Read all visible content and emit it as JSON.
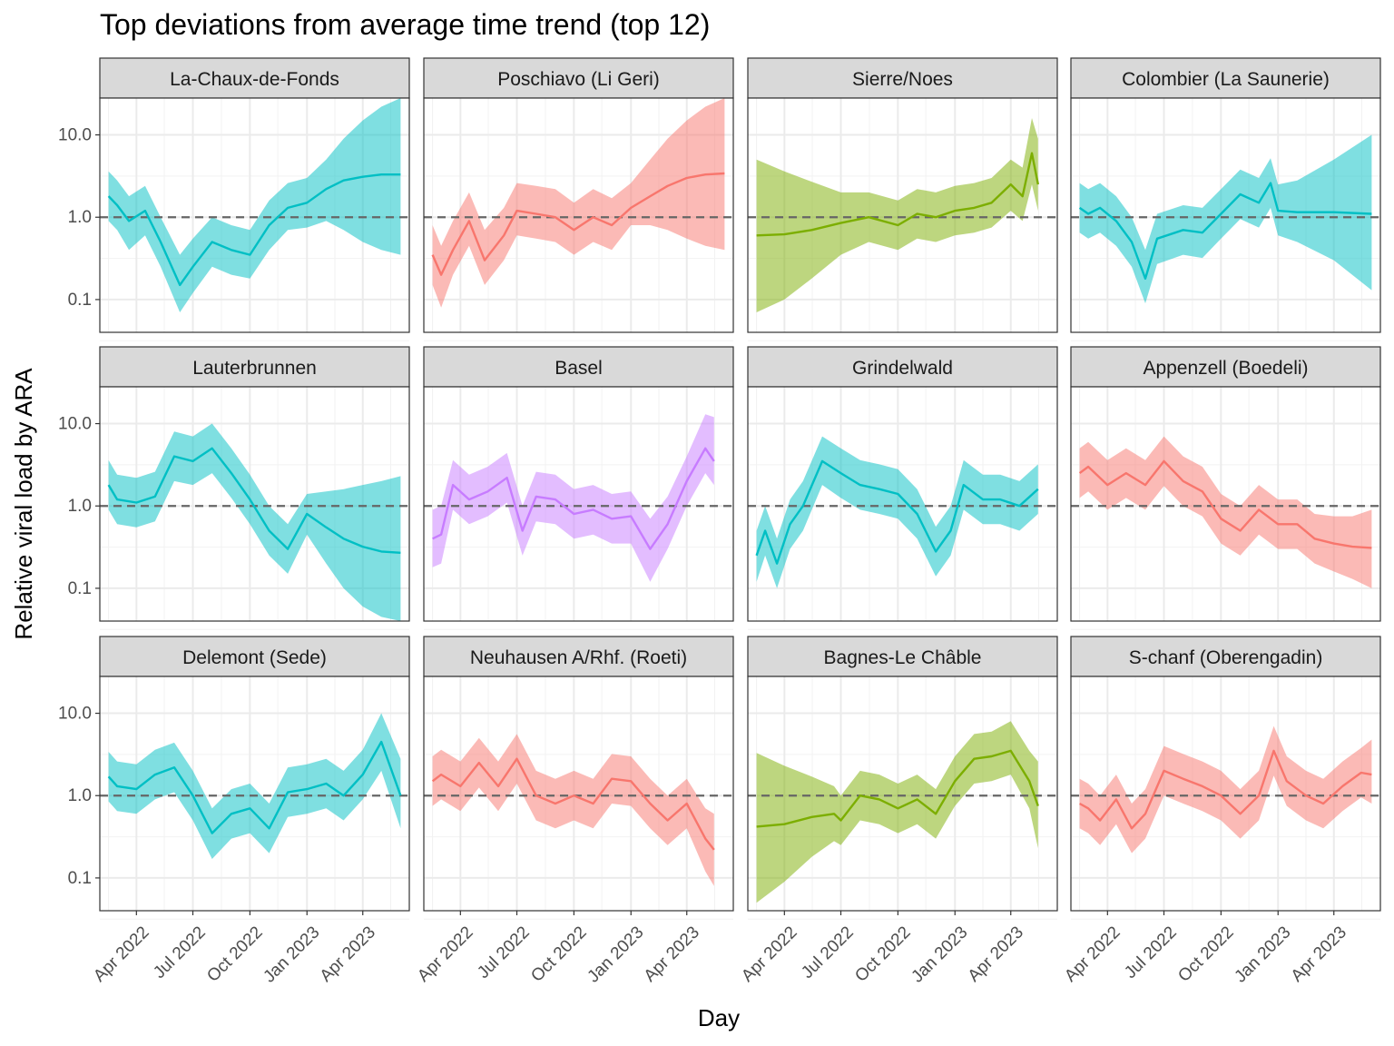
{
  "chart_data": {
    "type": "line",
    "title": "Top deviations from average time trend (top 12)",
    "xlabel": "Day",
    "ylabel": "Relative viral load by ARA",
    "y_scale": "log10",
    "ylim": [
      0.04,
      28
    ],
    "y_ticks": [
      0.1,
      1.0,
      10.0
    ],
    "y_tick_labels": [
      "0.1",
      "1.0",
      "10.0"
    ],
    "xlim": [
      "2022-02-01",
      "2023-06-15"
    ],
    "x_ticks": [
      "2022-04-01",
      "2022-07-01",
      "2022-10-01",
      "2023-01-01",
      "2023-04-01"
    ],
    "x_tick_labels": [
      "Apr 2022",
      "Jul 2022",
      "Oct 2022",
      "Jan 2023",
      "Apr 2023"
    ],
    "reference_line": 1.0,
    "grid": true,
    "layout": "facet grid 3 rows x 4 columns",
    "colors": {
      "teal": "#00BFC4",
      "red": "#F8766D",
      "green": "#7CAE00",
      "purple": "#C77CFF"
    },
    "facets": [
      {
        "name": "La-Chaux-de-Fonds",
        "color": "#00BFC4",
        "x": [
          "2022-02-15",
          "2022-03-01",
          "2022-03-20",
          "2022-04-15",
          "2022-05-10",
          "2022-06-10",
          "2022-07-01",
          "2022-08-01",
          "2022-09-01",
          "2022-10-01",
          "2022-11-01",
          "2022-12-01",
          "2023-01-01",
          "2023-02-01",
          "2023-03-01",
          "2023-04-01",
          "2023-05-01",
          "2023-06-01"
        ],
        "y": [
          1.8,
          1.4,
          0.9,
          1.2,
          0.5,
          0.15,
          0.25,
          0.5,
          0.4,
          0.35,
          0.8,
          1.3,
          1.5,
          2.2,
          2.8,
          3.1,
          3.3,
          3.3
        ],
        "lower": [
          0.9,
          0.7,
          0.4,
          0.6,
          0.25,
          0.07,
          0.12,
          0.25,
          0.2,
          0.18,
          0.4,
          0.7,
          0.75,
          0.9,
          0.7,
          0.5,
          0.4,
          0.35
        ],
        "upper": [
          3.6,
          2.8,
          1.8,
          2.4,
          1.0,
          0.35,
          0.55,
          1.0,
          0.8,
          0.7,
          1.6,
          2.6,
          3.0,
          5.0,
          9.0,
          15.0,
          22.0,
          28.0
        ]
      },
      {
        "name": "Poschiavo (Li Geri)",
        "color": "#F8766D",
        "x": [
          "2022-02-15",
          "2022-03-01",
          "2022-03-20",
          "2022-04-15",
          "2022-05-10",
          "2022-06-10",
          "2022-07-01",
          "2022-08-01",
          "2022-09-01",
          "2022-10-01",
          "2022-11-01",
          "2022-12-01",
          "2023-01-01",
          "2023-02-01",
          "2023-03-01",
          "2023-04-01",
          "2023-05-01",
          "2023-06-01"
        ],
        "y": [
          0.35,
          0.2,
          0.4,
          0.9,
          0.3,
          0.6,
          1.2,
          1.1,
          1.0,
          0.7,
          1.0,
          0.8,
          1.3,
          1.8,
          2.4,
          3.0,
          3.3,
          3.4
        ],
        "lower": [
          0.15,
          0.08,
          0.2,
          0.45,
          0.15,
          0.3,
          0.6,
          0.55,
          0.5,
          0.35,
          0.5,
          0.4,
          0.8,
          0.8,
          0.7,
          0.55,
          0.45,
          0.4
        ],
        "upper": [
          0.8,
          0.45,
          0.9,
          2.0,
          0.7,
          1.3,
          2.6,
          2.4,
          2.2,
          1.5,
          2.2,
          1.7,
          2.6,
          5.0,
          9.0,
          15.0,
          22.0,
          28.0
        ]
      },
      {
        "name": "Sierre/Noes",
        "color": "#7CAE00",
        "x": [
          "2022-02-15",
          "2022-04-01",
          "2022-05-15",
          "2022-07-01",
          "2022-08-15",
          "2022-10-01",
          "2022-11-01",
          "2022-12-01",
          "2023-01-01",
          "2023-02-01",
          "2023-03-01",
          "2023-04-01",
          "2023-04-20",
          "2023-05-05",
          "2023-05-15"
        ],
        "y": [
          0.6,
          0.62,
          0.7,
          0.85,
          1.0,
          0.8,
          1.1,
          1.0,
          1.2,
          1.3,
          1.5,
          2.5,
          1.8,
          6.0,
          2.5
        ],
        "lower": [
          0.07,
          0.1,
          0.18,
          0.35,
          0.5,
          0.4,
          0.55,
          0.5,
          0.6,
          0.65,
          0.75,
          1.2,
          0.9,
          2.5,
          1.2
        ],
        "upper": [
          5.0,
          3.6,
          2.7,
          2.0,
          2.0,
          1.6,
          2.2,
          2.0,
          2.4,
          2.6,
          3.0,
          5.0,
          4.0,
          16.0,
          9.0
        ]
      },
      {
        "name": "Colombier (La Saunerie)",
        "color": "#00BFC4",
        "x": [
          "2022-02-15",
          "2022-03-01",
          "2022-03-20",
          "2022-04-15",
          "2022-05-10",
          "2022-06-01",
          "2022-06-20",
          "2022-08-01",
          "2022-09-01",
          "2022-10-01",
          "2022-11-01",
          "2022-12-01",
          "2022-12-20",
          "2023-01-01",
          "2023-02-01",
          "2023-04-01",
          "2023-06-01"
        ],
        "y": [
          1.3,
          1.1,
          1.3,
          0.9,
          0.5,
          0.18,
          0.55,
          0.7,
          0.65,
          1.1,
          1.9,
          1.5,
          2.6,
          1.2,
          1.15,
          1.15,
          1.1
        ],
        "lower": [
          0.65,
          0.55,
          0.65,
          0.45,
          0.25,
          0.09,
          0.27,
          0.35,
          0.32,
          0.55,
          0.95,
          0.75,
          1.3,
          0.6,
          0.5,
          0.3,
          0.13
        ],
        "upper": [
          2.6,
          2.2,
          2.6,
          1.8,
          1.0,
          0.4,
          1.1,
          1.4,
          1.3,
          2.2,
          3.8,
          3.0,
          5.2,
          2.5,
          2.8,
          5.0,
          10.0
        ]
      },
      {
        "name": "Lauterbrunnen",
        "color": "#00BFC4",
        "x": [
          "2022-02-15",
          "2022-03-01",
          "2022-04-01",
          "2022-05-01",
          "2022-06-01",
          "2022-07-01",
          "2022-08-01",
          "2022-09-01",
          "2022-10-01",
          "2022-11-01",
          "2022-12-01",
          "2023-01-01",
          "2023-02-01",
          "2023-03-01",
          "2023-04-01",
          "2023-05-01",
          "2023-06-01"
        ],
        "y": [
          1.8,
          1.2,
          1.1,
          1.3,
          4.0,
          3.5,
          5.0,
          2.5,
          1.2,
          0.5,
          0.3,
          0.8,
          0.55,
          0.4,
          0.32,
          0.28,
          0.27
        ],
        "lower": [
          0.9,
          0.6,
          0.55,
          0.65,
          2.0,
          1.8,
          2.5,
          1.25,
          0.6,
          0.25,
          0.15,
          0.45,
          0.2,
          0.1,
          0.06,
          0.045,
          0.04
        ],
        "upper": [
          3.6,
          2.4,
          2.2,
          2.6,
          8.0,
          7.0,
          10.0,
          5.0,
          2.4,
          1.0,
          0.6,
          1.4,
          1.5,
          1.6,
          1.8,
          2.0,
          2.3
        ]
      },
      {
        "name": "Basel",
        "color": "#C77CFF",
        "x": [
          "2022-02-15",
          "2022-03-01",
          "2022-03-20",
          "2022-04-15",
          "2022-05-15",
          "2022-06-15",
          "2022-07-10",
          "2022-08-01",
          "2022-09-01",
          "2022-10-01",
          "2022-11-01",
          "2022-12-01",
          "2023-01-01",
          "2023-02-01",
          "2023-03-01",
          "2023-04-01",
          "2023-05-01",
          "2023-05-15"
        ],
        "y": [
          0.4,
          0.45,
          1.8,
          1.2,
          1.5,
          2.2,
          0.5,
          1.3,
          1.2,
          0.8,
          0.9,
          0.7,
          0.75,
          0.3,
          0.6,
          2.0,
          5.0,
          3.5
        ],
        "lower": [
          0.18,
          0.2,
          0.9,
          0.6,
          0.75,
          1.1,
          0.25,
          0.65,
          0.6,
          0.4,
          0.45,
          0.35,
          0.35,
          0.12,
          0.3,
          1.0,
          2.5,
          1.8
        ],
        "upper": [
          0.9,
          1.0,
          3.6,
          2.4,
          3.0,
          4.4,
          1.0,
          2.6,
          2.4,
          1.6,
          1.8,
          1.4,
          1.5,
          0.7,
          1.3,
          4.0,
          13.0,
          12.0
        ]
      },
      {
        "name": "Grindelwald",
        "color": "#00BFC4",
        "x": [
          "2022-02-15",
          "2022-03-01",
          "2022-03-20",
          "2022-04-10",
          "2022-05-01",
          "2022-06-01",
          "2022-07-01",
          "2022-08-01",
          "2022-09-01",
          "2022-10-01",
          "2022-11-01",
          "2022-12-01",
          "2022-12-25",
          "2023-01-15",
          "2023-02-15",
          "2023-03-15",
          "2023-04-15",
          "2023-05-15"
        ],
        "y": [
          0.25,
          0.5,
          0.2,
          0.6,
          1.0,
          3.5,
          2.5,
          1.8,
          1.6,
          1.4,
          0.8,
          0.28,
          0.5,
          1.8,
          1.2,
          1.2,
          1.0,
          1.6
        ],
        "lower": [
          0.12,
          0.25,
          0.1,
          0.3,
          0.5,
          1.8,
          1.25,
          0.9,
          0.8,
          0.7,
          0.4,
          0.14,
          0.25,
          0.9,
          0.6,
          0.6,
          0.5,
          0.8
        ],
        "upper": [
          0.5,
          1.0,
          0.4,
          1.2,
          2.0,
          7.0,
          5.0,
          3.6,
          3.2,
          2.8,
          1.6,
          0.56,
          1.0,
          3.6,
          2.4,
          2.4,
          2.0,
          3.2
        ]
      },
      {
        "name": "Appenzell (Boedeli)",
        "color": "#F8766D",
        "x": [
          "2022-02-15",
          "2022-03-01",
          "2022-04-01",
          "2022-05-01",
          "2022-06-01",
          "2022-07-01",
          "2022-08-01",
          "2022-09-01",
          "2022-10-01",
          "2022-11-01",
          "2022-12-01",
          "2023-01-01",
          "2023-02-01",
          "2023-03-01",
          "2023-04-01",
          "2023-05-01",
          "2023-06-01"
        ],
        "y": [
          2.5,
          3.0,
          1.8,
          2.5,
          1.8,
          3.5,
          2.0,
          1.5,
          0.7,
          0.5,
          0.9,
          0.6,
          0.6,
          0.4,
          0.35,
          0.32,
          0.31
        ],
        "lower": [
          1.25,
          1.5,
          0.9,
          1.25,
          0.9,
          1.75,
          1.0,
          0.75,
          0.35,
          0.25,
          0.45,
          0.3,
          0.3,
          0.2,
          0.16,
          0.13,
          0.1
        ],
        "upper": [
          5.0,
          6.0,
          3.6,
          5.0,
          3.6,
          7.0,
          4.0,
          3.0,
          1.4,
          1.0,
          1.8,
          1.2,
          1.2,
          0.8,
          0.75,
          0.75,
          0.9
        ]
      },
      {
        "name": "Delemont (Sede)",
        "color": "#00BFC4",
        "x": [
          "2022-02-15",
          "2022-03-01",
          "2022-04-01",
          "2022-05-01",
          "2022-06-01",
          "2022-07-01",
          "2022-08-01",
          "2022-09-01",
          "2022-10-01",
          "2022-11-01",
          "2022-12-01",
          "2023-01-01",
          "2023-02-01",
          "2023-03-01",
          "2023-04-01",
          "2023-05-01",
          "2023-06-01"
        ],
        "y": [
          1.7,
          1.3,
          1.2,
          1.8,
          2.2,
          1.0,
          0.35,
          0.6,
          0.7,
          0.4,
          1.1,
          1.2,
          1.4,
          1.0,
          1.8,
          4.5,
          1.0
        ],
        "lower": [
          0.85,
          0.65,
          0.6,
          0.9,
          1.1,
          0.5,
          0.17,
          0.3,
          0.35,
          0.2,
          0.55,
          0.6,
          0.7,
          0.5,
          0.9,
          2.0,
          0.4
        ],
        "upper": [
          3.4,
          2.6,
          2.4,
          3.6,
          4.4,
          2.0,
          0.7,
          1.2,
          1.4,
          0.8,
          2.2,
          2.4,
          2.8,
          2.0,
          3.6,
          10.0,
          2.8
        ]
      },
      {
        "name": "Neuhausen A/Rhf. (Roeti)",
        "color": "#F8766D",
        "x": [
          "2022-02-15",
          "2022-03-01",
          "2022-04-01",
          "2022-05-01",
          "2022-06-01",
          "2022-07-01",
          "2022-08-01",
          "2022-09-01",
          "2022-10-01",
          "2022-11-01",
          "2022-12-01",
          "2023-01-01",
          "2023-02-01",
          "2023-03-01",
          "2023-04-01",
          "2023-05-01",
          "2023-05-15"
        ],
        "y": [
          1.5,
          1.8,
          1.3,
          2.5,
          1.3,
          2.8,
          1.0,
          0.8,
          1.0,
          0.8,
          1.6,
          1.5,
          0.8,
          0.5,
          0.8,
          0.3,
          0.22
        ],
        "lower": [
          0.75,
          0.9,
          0.65,
          1.25,
          0.65,
          1.4,
          0.5,
          0.4,
          0.5,
          0.4,
          0.8,
          0.75,
          0.4,
          0.25,
          0.4,
          0.12,
          0.08
        ],
        "upper": [
          3.0,
          3.6,
          2.6,
          5.0,
          2.6,
          5.6,
          2.0,
          1.6,
          2.0,
          1.6,
          3.2,
          3.0,
          1.6,
          1.0,
          1.6,
          0.7,
          0.6
        ]
      },
      {
        "name": "Bagnes-Le Châble",
        "color": "#7CAE00",
        "x": [
          "2022-02-15",
          "2022-04-01",
          "2022-05-15",
          "2022-06-20",
          "2022-07-01",
          "2022-08-01",
          "2022-09-01",
          "2022-10-01",
          "2022-11-01",
          "2022-12-01",
          "2023-01-01",
          "2023-02-01",
          "2023-03-01",
          "2023-04-01",
          "2023-05-01",
          "2023-05-15"
        ],
        "y": [
          0.42,
          0.45,
          0.55,
          0.6,
          0.5,
          1.0,
          0.9,
          0.7,
          0.9,
          0.6,
          1.5,
          2.8,
          3.0,
          3.5,
          1.5,
          0.75
        ],
        "lower": [
          0.05,
          0.09,
          0.18,
          0.28,
          0.25,
          0.5,
          0.45,
          0.35,
          0.45,
          0.3,
          0.75,
          1.4,
          1.5,
          1.8,
          0.7,
          0.23
        ],
        "upper": [
          3.3,
          2.3,
          1.7,
          1.3,
          1.0,
          2.0,
          1.8,
          1.4,
          1.8,
          1.2,
          3.0,
          5.6,
          6.0,
          8.0,
          3.5,
          2.6
        ]
      },
      {
        "name": "S-chanf (Oberengadin)",
        "color": "#F8766D",
        "x": [
          "2022-02-15",
          "2022-03-01",
          "2022-03-20",
          "2022-04-15",
          "2022-05-10",
          "2022-06-01",
          "2022-07-01",
          "2022-08-01",
          "2022-09-01",
          "2022-10-01",
          "2022-11-01",
          "2022-12-01",
          "2022-12-25",
          "2023-01-15",
          "2023-02-15",
          "2023-03-15",
          "2023-04-15",
          "2023-05-15",
          "2023-06-01"
        ],
        "y": [
          0.8,
          0.7,
          0.5,
          0.9,
          0.4,
          0.6,
          2.0,
          1.6,
          1.3,
          1.0,
          0.6,
          1.0,
          3.5,
          1.5,
          1.0,
          0.8,
          1.3,
          1.9,
          1.8
        ],
        "lower": [
          0.4,
          0.35,
          0.25,
          0.45,
          0.2,
          0.3,
          1.0,
          0.8,
          0.65,
          0.5,
          0.3,
          0.5,
          1.75,
          0.75,
          0.5,
          0.4,
          0.65,
          0.95,
          0.8
        ],
        "upper": [
          1.6,
          1.4,
          1.0,
          1.8,
          0.8,
          1.2,
          4.0,
          3.2,
          2.6,
          2.0,
          1.2,
          2.0,
          7.0,
          3.0,
          2.0,
          1.6,
          2.6,
          3.8,
          4.8
        ]
      }
    ]
  }
}
